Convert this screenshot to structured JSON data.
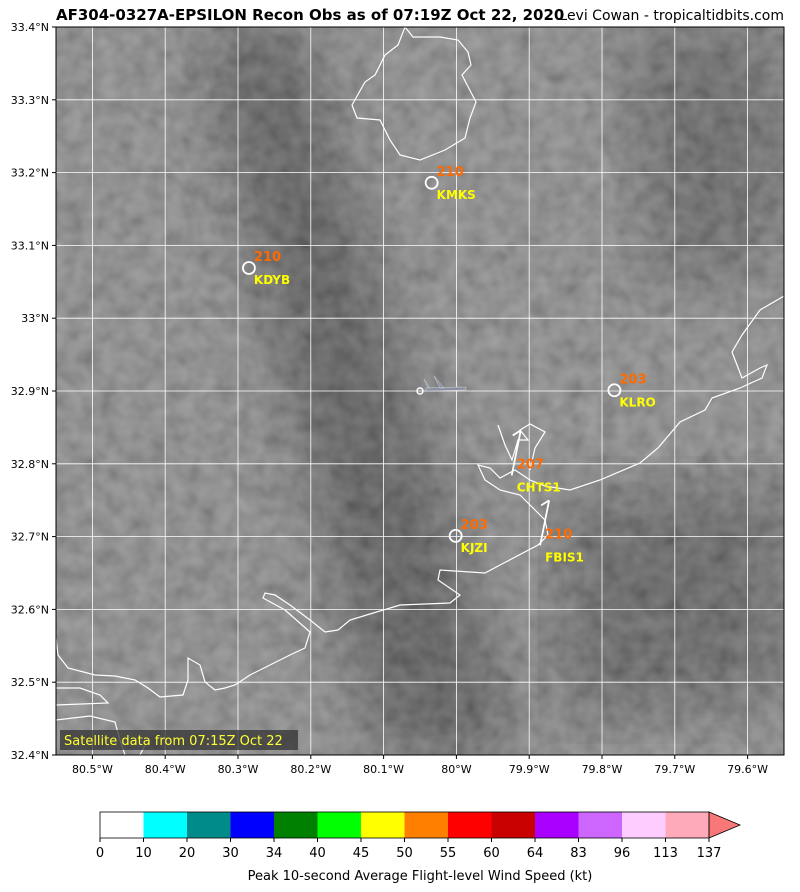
{
  "title": "AF304-0327A-EPSILON Recon Obs as of 07:19Z Oct 22, 2020",
  "credit": "Levi Cowan - tropicaltidbits.com",
  "map": {
    "xlim": [
      -80.55,
      -79.55
    ],
    "ylim": [
      32.4,
      33.4
    ],
    "xticks": [
      {
        "value": -80.5,
        "label": "80.5°W"
      },
      {
        "value": -80.4,
        "label": "80.4°W"
      },
      {
        "value": -80.3,
        "label": "80.3°W"
      },
      {
        "value": -80.2,
        "label": "80.2°W"
      },
      {
        "value": -80.1,
        "label": "80.1°W"
      },
      {
        "value": -80.0,
        "label": "80°W"
      },
      {
        "value": -79.9,
        "label": "79.9°W"
      },
      {
        "value": -79.8,
        "label": "79.8°W"
      },
      {
        "value": -79.7,
        "label": "79.7°W"
      },
      {
        "value": -79.6,
        "label": "79.6°W"
      }
    ],
    "yticks": [
      {
        "value": 32.4,
        "label": "32.4°N"
      },
      {
        "value": 32.5,
        "label": "32.5°N"
      },
      {
        "value": 32.6,
        "label": "32.6°N"
      },
      {
        "value": 32.7,
        "label": "32.7°N"
      },
      {
        "value": 32.8,
        "label": "32.8°N"
      },
      {
        "value": 32.9,
        "label": "32.9°N"
      },
      {
        "value": 33.0,
        "label": "33°N"
      },
      {
        "value": 33.1,
        "label": "33.1°N"
      },
      {
        "value": 33.2,
        "label": "33.2°N"
      },
      {
        "value": 33.3,
        "label": "33.3°N"
      },
      {
        "value": 33.4,
        "label": "33.4°N"
      }
    ]
  },
  "stations": [
    {
      "id": "KMKS",
      "value": 210,
      "lon": -80.034,
      "lat": 33.186,
      "marker": "circle"
    },
    {
      "id": "KDYB",
      "value": 210,
      "lon": -80.285,
      "lat": 33.069,
      "marker": "circle"
    },
    {
      "id": "KLRO",
      "value": 203,
      "lon": -79.783,
      "lat": 32.901,
      "marker": "circle"
    },
    {
      "id": "CHTS1",
      "value": 207,
      "lon": -79.924,
      "lat": 32.784,
      "marker": "barb"
    },
    {
      "id": "KJZI",
      "value": 203,
      "lon": -80.001,
      "lat": 32.701,
      "marker": "circle"
    },
    {
      "id": "FBIS1",
      "value": 210,
      "lon": -79.885,
      "lat": 32.688,
      "marker": "barb"
    }
  ],
  "aircraft": {
    "lon": -80.05,
    "lat": 32.9
  },
  "satellite_note": "Satellite data from 07:15Z Oct 22",
  "colorbar": {
    "label": "Peak 10-second Average Flight-level Wind Speed (kt)",
    "bounds": [
      0,
      10,
      20,
      30,
      34,
      40,
      45,
      50,
      55,
      60,
      64,
      83,
      96,
      113,
      137
    ],
    "colors": [
      "#ffffff",
      "#00ffff",
      "#008b8b",
      "#0000ff",
      "#008000",
      "#00ff00",
      "#ffff00",
      "#ff7f00",
      "#ff0000",
      "#c80000",
      "#aa00ff",
      "#cc66ff",
      "#ffccff",
      "#ffaabb"
    ],
    "extend_color": "#f87878"
  }
}
